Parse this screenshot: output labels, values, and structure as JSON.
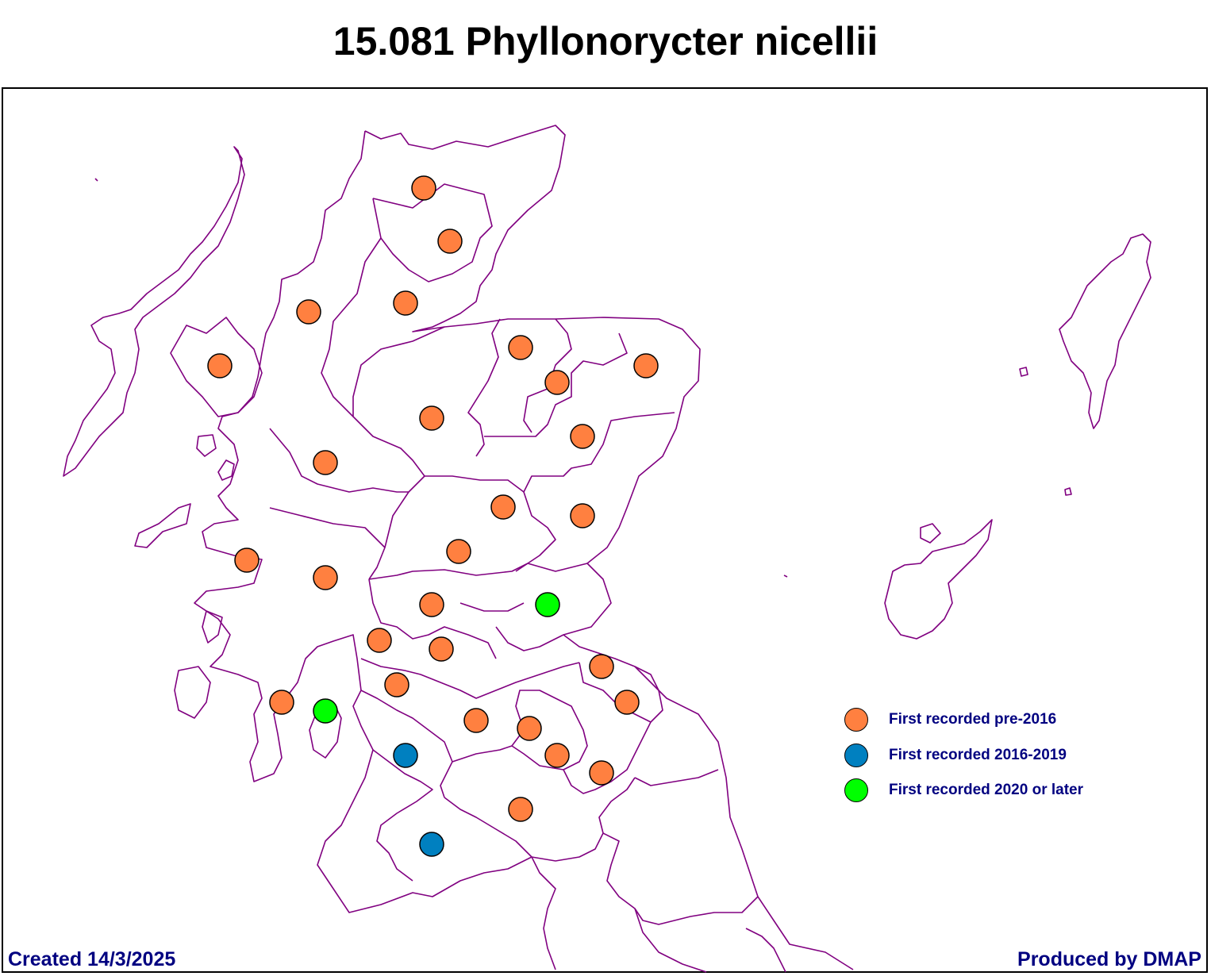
{
  "title": "15.081 Phyllonorycter nicellii",
  "colors": {
    "pre_2016": "#ff8040",
    "y2016_2019": "#0080c0",
    "y2020_later": "#00ff00",
    "boundary": "#800080",
    "footer_text": "#000080"
  },
  "legend": [
    {
      "label": "First recorded pre-2016",
      "color": "#ff8040"
    },
    {
      "label": "First recorded 2016-2019",
      "color": "#0080c0"
    },
    {
      "label": "First recorded 2020 or later",
      "color": "#00ff00"
    }
  ],
  "records": {
    "pre_2016_count": 28,
    "y2016_2019_count": 2,
    "y2020_later_count": 2
  },
  "footer": {
    "created": "Created 14/3/2025",
    "produced": "Produced by DMAP"
  }
}
